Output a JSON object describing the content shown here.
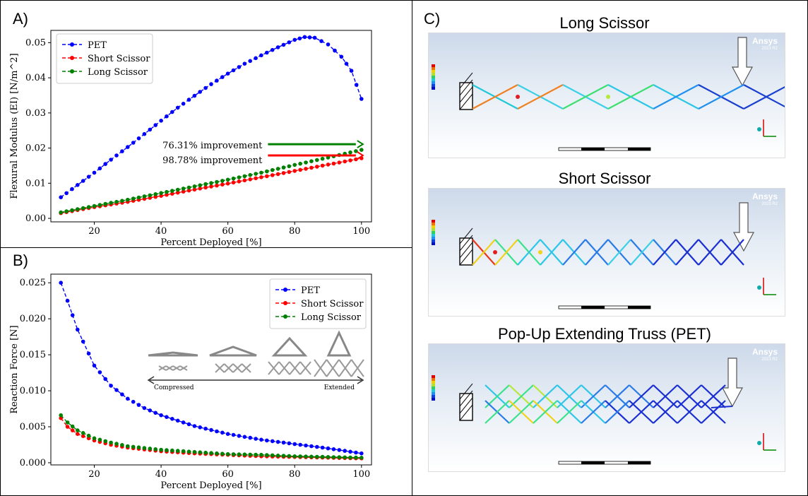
{
  "panels": {
    "a_label": "A)",
    "b_label": "B)",
    "c_label": "C)"
  },
  "chart_data": [
    {
      "type": "line",
      "xlabel": "Percent Deployed [%]",
      "ylabel": "Flexural Modulus (EI) [N/m^2]",
      "xlim": [
        7,
        103
      ],
      "ylim": [
        -0.001,
        0.0535
      ],
      "xticks": [
        "20",
        "40",
        "60",
        "80",
        "100"
      ],
      "yticks": [
        "0.00",
        "0.01",
        "0.02",
        "0.03",
        "0.04",
        "0.05"
      ],
      "legend_position": "top-left",
      "grid": false,
      "series": [
        {
          "name": "PET",
          "color": "#0000ff",
          "x": [
            10,
            15,
            20,
            25,
            30,
            35,
            40,
            45,
            50,
            55,
            60,
            65,
            70,
            75,
            80,
            83,
            86,
            90,
            94,
            97,
            100
          ],
          "y": [
            0.006,
            0.0095,
            0.013,
            0.0167,
            0.0203,
            0.024,
            0.0278,
            0.0315,
            0.0349,
            0.0382,
            0.0412,
            0.044,
            0.0464,
            0.0487,
            0.0508,
            0.0516,
            0.0514,
            0.0495,
            0.046,
            0.042,
            0.034
          ]
        },
        {
          "name": "Short Scissor",
          "color": "#ff0000",
          "x": [
            10,
            20,
            30,
            40,
            50,
            60,
            70,
            80,
            90,
            100
          ],
          "y": [
            0.0015,
            0.0032,
            0.0047,
            0.0064,
            0.0082,
            0.0099,
            0.0117,
            0.0135,
            0.0153,
            0.0171
          ]
        },
        {
          "name": "Long Scissor",
          "color": "#008000",
          "x": [
            10,
            20,
            30,
            40,
            50,
            60,
            70,
            80,
            90,
            100
          ],
          "y": [
            0.0017,
            0.0035,
            0.0053,
            0.0072,
            0.0091,
            0.011,
            0.013,
            0.0152,
            0.0173,
            0.0195
          ]
        }
      ],
      "annotations": [
        {
          "text": "76.31% improvement",
          "color": "#008000",
          "x_from": 72,
          "x_to": 100,
          "y": 0.0195
        },
        {
          "text": "98.78% improvement",
          "color": "#ff0000",
          "x_from": 72,
          "x_to": 100,
          "y": 0.0171
        }
      ]
    },
    {
      "type": "line",
      "xlabel": "Percent Deployed [%]",
      "ylabel": "Reaction Force [N]",
      "xlim": [
        7,
        103
      ],
      "ylim": [
        -0.0003,
        0.0262
      ],
      "xticks": [
        "20",
        "40",
        "60",
        "80",
        "100"
      ],
      "yticks": [
        "0.000",
        "0.005",
        "0.010",
        "0.015",
        "0.020",
        "0.025"
      ],
      "legend_position": "top-right",
      "grid": false,
      "series": [
        {
          "name": "PET",
          "color": "#0000ff",
          "x": [
            10,
            12,
            15,
            20,
            25,
            30,
            35,
            40,
            50,
            60,
            70,
            80,
            90,
            100
          ],
          "y": [
            0.025,
            0.0225,
            0.0185,
            0.0135,
            0.0107,
            0.0089,
            0.0076,
            0.0066,
            0.0051,
            0.004,
            0.0032,
            0.0026,
            0.002,
            0.0013
          ]
        },
        {
          "name": "Short Scissor",
          "color": "#ff0000",
          "x": [
            10,
            12,
            15,
            20,
            25,
            30,
            40,
            50,
            60,
            70,
            80,
            90,
            100
          ],
          "y": [
            0.0062,
            0.005,
            0.004,
            0.0031,
            0.0025,
            0.0021,
            0.0016,
            0.0013,
            0.0011,
            0.0009,
            0.0008,
            0.0007,
            0.0006
          ]
        },
        {
          "name": "Long Scissor",
          "color": "#008000",
          "x": [
            10,
            12,
            15,
            20,
            25,
            30,
            40,
            50,
            60,
            70,
            80,
            90,
            100
          ],
          "y": [
            0.0066,
            0.0056,
            0.0045,
            0.0034,
            0.0028,
            0.0023,
            0.0018,
            0.0015,
            0.0012,
            0.0011,
            0.0009,
            0.0008,
            0.0007
          ]
        }
      ],
      "inset": {
        "left_label": "Compressed",
        "right_label": "Extended"
      }
    }
  ],
  "simulations": [
    {
      "title": "Long Scissor",
      "brand": "Ansys",
      "version": "2023 R2"
    },
    {
      "title": "Short Scissor",
      "brand": "Ansys",
      "version": "2023 R2"
    },
    {
      "title": "Pop-Up Extending Truss (PET)",
      "brand": "Ansys",
      "version": "2023 R2"
    }
  ]
}
